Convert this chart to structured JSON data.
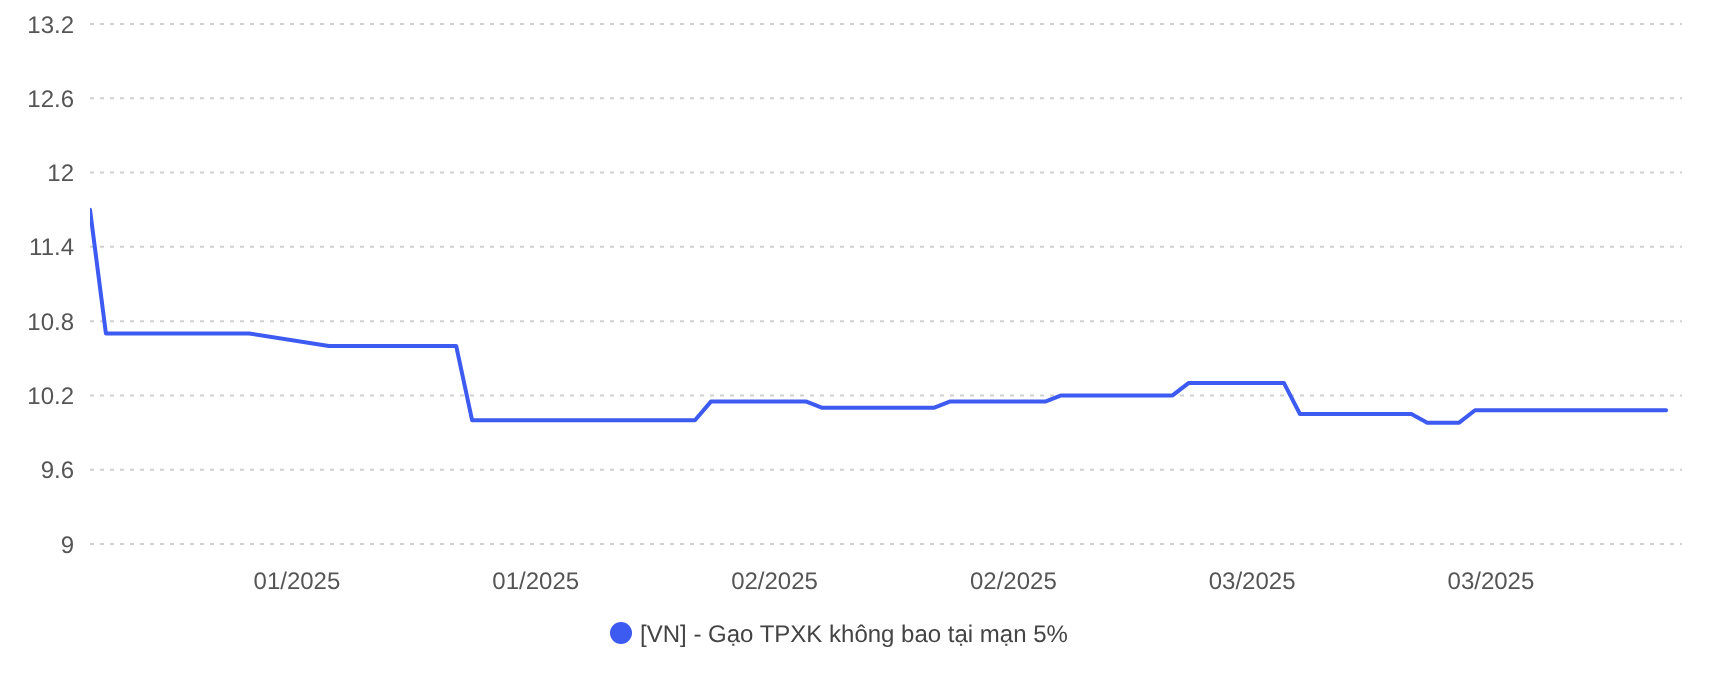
{
  "chart_data": {
    "type": "line",
    "x": [
      "2024-12-28",
      "2024-12-29",
      "2025-01-07",
      "2025-01-12",
      "2025-01-20",
      "2025-01-21",
      "2025-02-04",
      "2025-02-05",
      "2025-02-11",
      "2025-02-12",
      "2025-02-19",
      "2025-02-20",
      "2025-02-26",
      "2025-02-27",
      "2025-03-06",
      "2025-03-07",
      "2025-03-13",
      "2025-03-14",
      "2025-03-21",
      "2025-03-22",
      "2025-03-24",
      "2025-03-25",
      "2025-04-06"
    ],
    "series": [
      {
        "name": "[VN] - Gạo TPXK không bao tại mạn 5%",
        "color": "#3d5af1",
        "values": [
          11.7,
          10.7,
          10.7,
          10.6,
          10.6,
          10.0,
          10.0,
          10.15,
          10.15,
          10.1,
          10.1,
          10.15,
          10.15,
          10.2,
          10.2,
          10.3,
          10.3,
          10.05,
          10.05,
          9.98,
          9.98,
          10.08,
          10.08
        ]
      }
    ],
    "xlim": [
      "2024-12-28",
      "2025-04-07"
    ],
    "xticks": [
      {
        "value": "2025-01-10",
        "label": "01/2025"
      },
      {
        "value": "2025-01-25",
        "label": "01/2025"
      },
      {
        "value": "2025-02-09",
        "label": "02/2025"
      },
      {
        "value": "2025-02-24",
        "label": "02/2025"
      },
      {
        "value": "2025-03-11",
        "label": "03/2025"
      },
      {
        "value": "2025-03-26",
        "label": "03/2025"
      }
    ],
    "ylim": [
      9,
      13.2
    ],
    "yticks": [
      9,
      9.6,
      10.2,
      10.8,
      11.4,
      12,
      12.6,
      13.2
    ],
    "grid": "y",
    "legend": "bottom",
    "marker": "none",
    "line_style": "solid"
  }
}
